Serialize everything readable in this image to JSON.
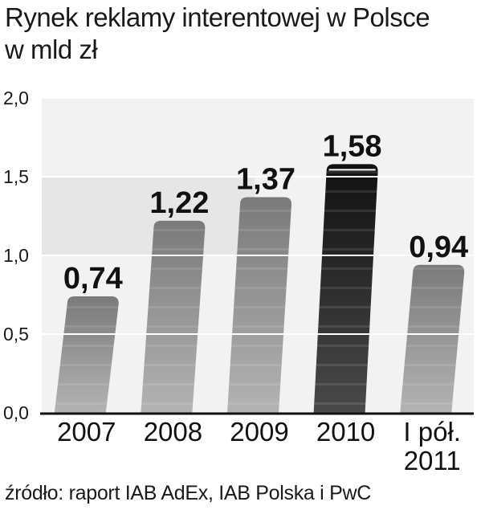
{
  "chart_data": {
    "type": "bar",
    "title": "Rynek reklamy interentowej w Polsce",
    "subtitle": "w mld zł",
    "categories": [
      "2007",
      "2008",
      "2009",
      "2010",
      "I pół. 2011"
    ],
    "category_lines": [
      [
        "2007"
      ],
      [
        "2008"
      ],
      [
        "2009"
      ],
      [
        "2010"
      ],
      [
        "I pół.",
        "2011"
      ]
    ],
    "values": [
      0.74,
      1.22,
      1.37,
      1.58,
      0.94
    ],
    "value_labels": [
      "0,74",
      "1,22",
      "1,37",
      "1,58",
      "0,94"
    ],
    "yticks": [
      0.0,
      0.5,
      1.0,
      1.5,
      2.0
    ],
    "ytick_labels": [
      "0,0",
      "0,5",
      "1,0",
      "1,5",
      "2,0"
    ],
    "ylim": [
      0,
      2.0
    ],
    "grid": true,
    "highlight_index": 3,
    "colors": {
      "bar": "#8c8c8c",
      "bar_highlight": "#1c1c1c",
      "grid": "#ffffff",
      "text": "#1a1a1a"
    }
  },
  "source": "źródło: raport IAB AdEx, IAB Polska i PwC"
}
